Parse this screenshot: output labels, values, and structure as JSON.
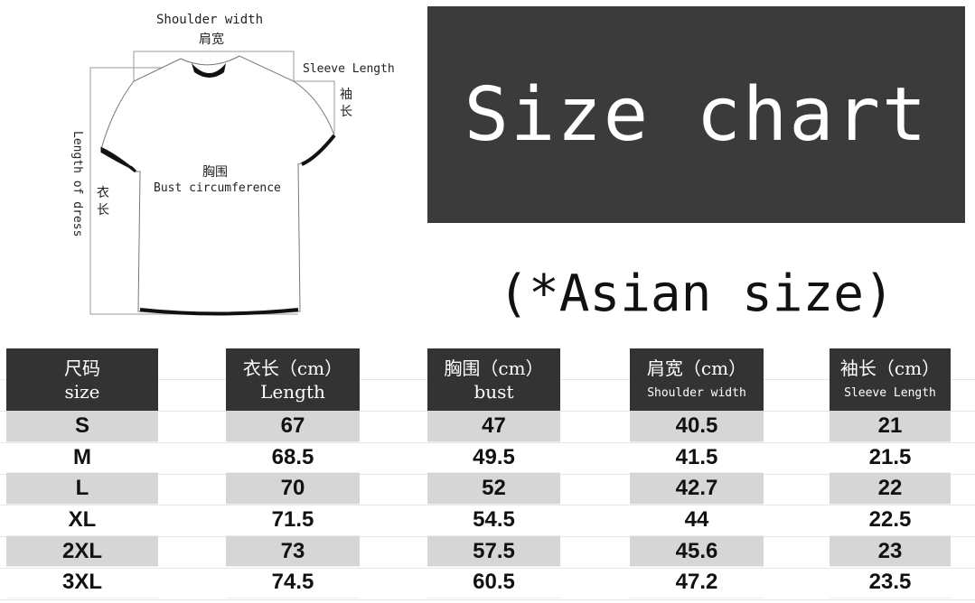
{
  "diagram": {
    "shoulder_en": "Shoulder width",
    "shoulder_cn": "肩宽",
    "sleeve_en": "Sleeve Length",
    "sleeve_cn": "袖长",
    "length_en": "Length of dress",
    "length_cn": "衣长",
    "bust_cn": "胸围",
    "bust_en": "Bust circumference"
  },
  "title": "Size chart",
  "subtitle": "(*Asian size)",
  "table": {
    "columns": [
      {
        "cn": "尺码",
        "en": "size"
      },
      {
        "cn": "衣长（cm）",
        "en": "Length"
      },
      {
        "cn": "胸围（cm）",
        "en": "bust"
      },
      {
        "cn": "肩宽（cm）",
        "en": "Shoulder width"
      },
      {
        "cn": "袖长（cm）",
        "en": "Sleeve Length"
      }
    ],
    "rows": [
      [
        "S",
        "67",
        "47",
        "40.5",
        "21"
      ],
      [
        "M",
        "68.5",
        "49.5",
        "41.5",
        "21.5"
      ],
      [
        "L",
        "70",
        "52",
        "42.7",
        "22"
      ],
      [
        "XL",
        "71.5",
        "54.5",
        "44",
        "22.5"
      ],
      [
        "2XL",
        "73",
        "57.5",
        "45.6",
        "23"
      ],
      [
        "3XL",
        "74.5",
        "60.5",
        "47.2",
        "23.5"
      ]
    ]
  },
  "colors": {
    "header_bg": "#333333",
    "title_bg": "#3b3b3b",
    "stripe": "#d6d6d6"
  }
}
